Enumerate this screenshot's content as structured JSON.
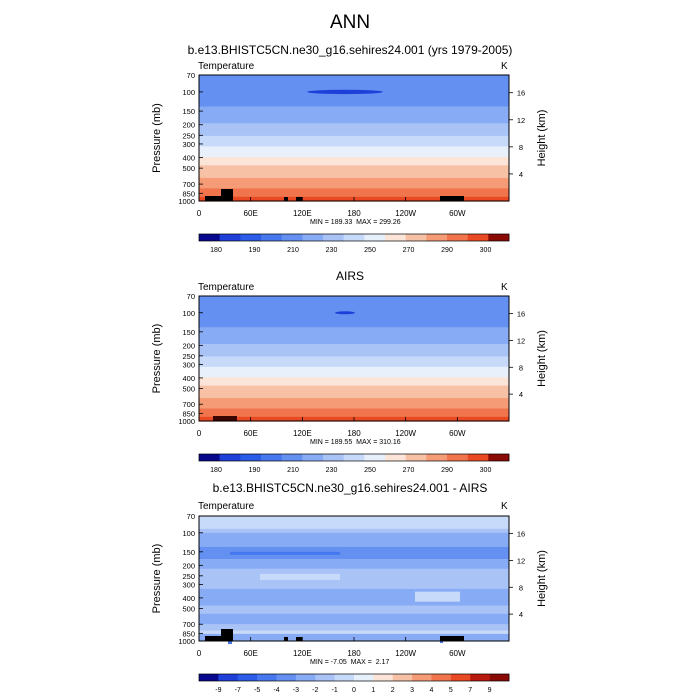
{
  "title": "ANN",
  "chart_data": [
    {
      "type": "heatmap",
      "title": "b.e13.BHISTC5CN.ne30_g16.sehires24.001 (yrs 1979-2005)",
      "variable": "Temperature",
      "units": "K",
      "ylabel": "Pressure (mb)",
      "y2label": "Height (km)",
      "xticks": [
        "0",
        "60E",
        "120E",
        "180",
        "120W",
        "60W"
      ],
      "yticks": [
        70,
        100,
        150,
        200,
        250,
        300,
        400,
        500,
        700,
        850,
        1000
      ],
      "y2ticks": [
        4,
        8,
        12,
        16
      ],
      "ylim": [
        70,
        1000
      ],
      "xlim": [
        0,
        360
      ],
      "min": 189.33,
      "max": 299.26,
      "minmax_text": "MIN = 189.33  MAX = 299.26",
      "colorbar": {
        "levels": [
          170,
          180,
          190,
          200,
          210,
          220,
          230,
          240,
          250,
          260,
          270,
          280,
          290,
          300
        ],
        "labels": [
          "180",
          "190",
          "210",
          "230",
          "250",
          "270",
          "290",
          "300"
        ],
        "colors": [
          "#08088c",
          "#1f3fd9",
          "#2b5ce8",
          "#4677ef",
          "#6490f2",
          "#88abf5",
          "#a9c3f7",
          "#c8dafa",
          "#e8f0fc",
          "#fbe4d8",
          "#f7c1a6",
          "#f59b76",
          "#f0754d",
          "#e94a24",
          "#8a0b05"
        ]
      },
      "profile": [
        {
          "p": 70,
          "v": 205
        },
        {
          "p": 100,
          "v": 203
        },
        {
          "p": 150,
          "v": 212
        },
        {
          "p": 200,
          "v": 221
        },
        {
          "p": 250,
          "v": 229
        },
        {
          "p": 300,
          "v": 237
        },
        {
          "p": 400,
          "v": 251
        },
        {
          "p": 500,
          "v": 262
        },
        {
          "p": 700,
          "v": 276
        },
        {
          "p": 850,
          "v": 286
        },
        {
          "p": 1000,
          "v": 294
        }
      ]
    },
    {
      "type": "heatmap",
      "title": "AIRS",
      "variable": "Temperature",
      "units": "K",
      "ylabel": "Pressure (mb)",
      "y2label": "Height (km)",
      "xticks": [
        "0",
        "60E",
        "120E",
        "180",
        "120W",
        "60W"
      ],
      "yticks": [
        70,
        100,
        150,
        200,
        250,
        300,
        400,
        500,
        700,
        850,
        1000
      ],
      "y2ticks": [
        4,
        8,
        12,
        16
      ],
      "ylim": [
        70,
        1000
      ],
      "xlim": [
        0,
        360
      ],
      "min": 189.55,
      "max": 310.16,
      "minmax_text": "MIN = 189.55  MAX = 310.16",
      "colorbar": {
        "levels": [
          170,
          180,
          190,
          200,
          210,
          220,
          230,
          240,
          250,
          260,
          270,
          280,
          290,
          300
        ],
        "labels": [
          "180",
          "190",
          "210",
          "230",
          "250",
          "270",
          "290",
          "300"
        ],
        "colors": [
          "#08088c",
          "#1f3fd9",
          "#2b5ce8",
          "#4677ef",
          "#6490f2",
          "#88abf5",
          "#a9c3f7",
          "#c8dafa",
          "#e8f0fc",
          "#fbe4d8",
          "#f7c1a6",
          "#f59b76",
          "#f0754d",
          "#e94a24",
          "#8a0b05"
        ]
      },
      "profile": [
        {
          "p": 70,
          "v": 205
        },
        {
          "p": 100,
          "v": 203
        },
        {
          "p": 150,
          "v": 212
        },
        {
          "p": 200,
          "v": 221
        },
        {
          "p": 250,
          "v": 229
        },
        {
          "p": 300,
          "v": 237
        },
        {
          "p": 400,
          "v": 251
        },
        {
          "p": 500,
          "v": 262
        },
        {
          "p": 700,
          "v": 276
        },
        {
          "p": 850,
          "v": 287
        },
        {
          "p": 1000,
          "v": 296
        }
      ]
    },
    {
      "type": "heatmap",
      "title": "b.e13.BHISTC5CN.ne30_g16.sehires24.001 - AIRS",
      "variable": "Temperature",
      "units": "K",
      "ylabel": "Pressure (mb)",
      "y2label": "Height (km)",
      "xticks": [
        "0",
        "60E",
        "120E",
        "180",
        "120W",
        "60W"
      ],
      "yticks": [
        70,
        100,
        150,
        200,
        250,
        300,
        400,
        500,
        700,
        850,
        1000
      ],
      "y2ticks": [
        4,
        8,
        12,
        16
      ],
      "ylim": [
        70,
        1000
      ],
      "xlim": [
        0,
        360
      ],
      "min": -7.05,
      "max": 2.17,
      "minmax_text": "MIN = -7.05  MAX =  2.17",
      "colorbar": {
        "levels": [
          -9,
          -7,
          -5,
          -4,
          -3,
          -2,
          -1,
          0,
          1,
          2,
          3,
          4,
          5,
          7,
          9
        ],
        "labels": [
          "-9",
          "-7",
          "-5",
          "-4",
          "-3",
          "-2",
          "-1",
          "0",
          "1",
          "2",
          "3",
          "4",
          "5",
          "7",
          "9"
        ],
        "colors": [
          "#08088c",
          "#1f3fd9",
          "#2b5ce8",
          "#4677ef",
          "#6490f2",
          "#88abf5",
          "#a9c3f7",
          "#c8dafa",
          "#e8f0fc",
          "#fbe4d8",
          "#f7c1a6",
          "#f59b76",
          "#f0754d",
          "#e94a24",
          "#b91a0e",
          "#8a0b05"
        ]
      }
    }
  ]
}
